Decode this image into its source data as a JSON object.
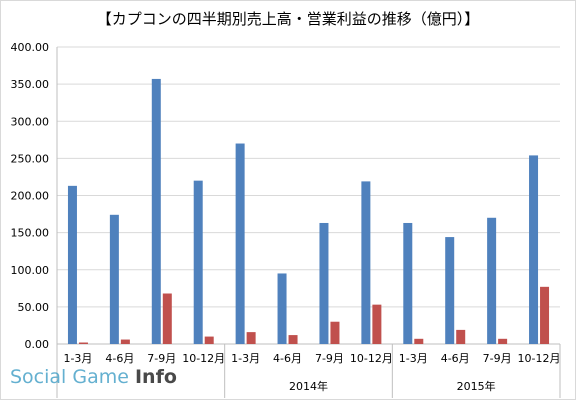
{
  "chart_data": {
    "type": "bar",
    "title": "【カプコンの四半期別売上高・営業利益の推移（億円）】",
    "categories": [
      "1-3月",
      "4-6月",
      "7-9月",
      "10-12月",
      "1-3月",
      "4-6月",
      "7-9月",
      "10-12月",
      "1-3月",
      "4-6月",
      "7-9月",
      "10-12月"
    ],
    "groups": [
      {
        "label": "",
        "span": 4
      },
      {
        "label": "2014年",
        "span": 4
      },
      {
        "label": "2015年",
        "span": 4
      }
    ],
    "series": [
      {
        "values": [
          213,
          174,
          357,
          220,
          270,
          95,
          163,
          219,
          163,
          144,
          170,
          254
        ],
        "color": "#4f81bd"
      },
      {
        "values": [
          2,
          6,
          68,
          10,
          16,
          12,
          30,
          53,
          7,
          19,
          7,
          77
        ],
        "color": "#c0504d"
      }
    ],
    "ylim": [
      0,
      400
    ],
    "yticks": [
      "0.00",
      "50.00",
      "100.00",
      "150.00",
      "200.00",
      "250.00",
      "300.00",
      "350.00",
      "400.00"
    ],
    "grid": true,
    "legend": "none"
  },
  "watermark": {
    "part1": "Social Game ",
    "part2": "Info"
  }
}
